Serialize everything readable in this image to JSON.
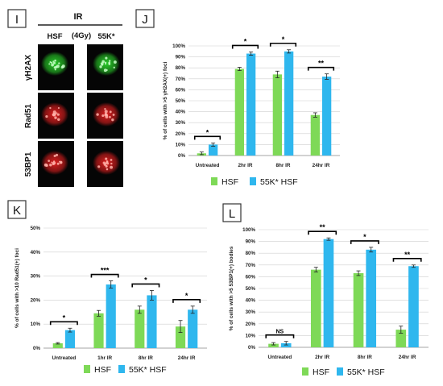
{
  "colors": {
    "hsf": "#7ed957",
    "k55": "#2fb7ee",
    "error": "#222222"
  },
  "panel_I": {
    "letter": "I",
    "header_ir": "IR",
    "header_dose": "(4Gy)",
    "col_hsf": "HSF",
    "col_55k": "55K*",
    "rows": [
      "γH2AX",
      "Rad51",
      "53BP1"
    ],
    "row_colors": [
      "#2ad52a",
      "#e82020",
      "#e82020"
    ]
  },
  "chart_data": [
    {
      "panel": "J",
      "type": "bar",
      "ylabel": "% of cells with >5 γH2AX(+) foci",
      "ylim": [
        0,
        100
      ],
      "yticks": [
        "0%",
        "10%",
        "20%",
        "30%",
        "40%",
        "50%",
        "60%",
        "70%",
        "80%",
        "90%",
        "100%"
      ],
      "categories": [
        "Untreated",
        "2hr IR",
        "8hr IR",
        "24hr IR"
      ],
      "series": [
        {
          "name": "HSF",
          "values": [
            2,
            79,
            74,
            37
          ],
          "errors": [
            1.2,
            1.5,
            3,
            2
          ]
        },
        {
          "name": "55K* HSF",
          "values": [
            10,
            93,
            95,
            72
          ],
          "errors": [
            1.5,
            1.5,
            1.5,
            2.5
          ]
        }
      ],
      "significance": [
        "*",
        "*",
        "*",
        "**"
      ],
      "legend": [
        "HSF",
        "55K* HSF"
      ]
    },
    {
      "panel": "K",
      "type": "bar",
      "ylabel": "% of cells with >10 Rad51(+) foci",
      "ylim": [
        0,
        50
      ],
      "yticks": [
        "0%",
        "10%",
        "20%",
        "30%",
        "40%",
        "50%"
      ],
      "categories": [
        "Untreated",
        "1hr IR",
        "8hr IR",
        "24hr IR"
      ],
      "series": [
        {
          "name": "HSF",
          "values": [
            2,
            14.5,
            16,
            9
          ],
          "errors": [
            0.3,
            1.2,
            1.5,
            2.5
          ]
        },
        {
          "name": "55K* HSF",
          "values": [
            7.5,
            26.5,
            22,
            16
          ],
          "errors": [
            0.8,
            1.5,
            2,
            1.5
          ]
        }
      ],
      "significance": [
        "*",
        "***",
        "*",
        "*"
      ],
      "legend": [
        "HSF",
        "55K* HSF"
      ]
    },
    {
      "panel": "L",
      "type": "bar",
      "ylabel": "% of cells with >5 53BP1(+) bodies",
      "ylim": [
        0,
        100
      ],
      "yticks": [
        "0%",
        "10%",
        "20%",
        "30%",
        "40%",
        "50%",
        "60%",
        "70%",
        "80%",
        "90%",
        "100%"
      ],
      "categories": [
        "Untreated",
        "2hr IR",
        "8hr IR",
        "24hr IR"
      ],
      "series": [
        {
          "name": "HSF",
          "values": [
            3,
            66,
            63,
            15
          ],
          "errors": [
            1,
            2,
            2,
            3
          ]
        },
        {
          "name": "55K* HSF",
          "values": [
            3.5,
            92,
            83,
            69
          ],
          "errors": [
            1.5,
            1,
            2,
            1
          ]
        }
      ],
      "significance": [
        "NS",
        "**",
        "*",
        "**"
      ],
      "legend": [
        "HSF",
        "55K* HSF"
      ]
    }
  ],
  "panel_letters": [
    "J",
    "K",
    "L"
  ]
}
